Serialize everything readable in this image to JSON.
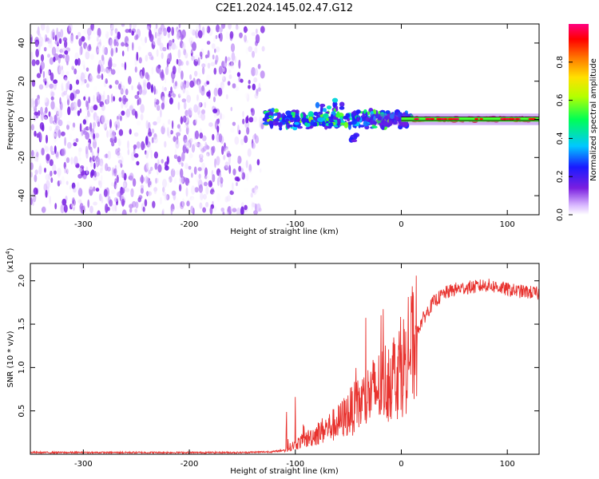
{
  "title": "C2E1.2024.145.02.47.G12",
  "colors": {
    "snr_line": "#e8322e",
    "ref_line": "#000000",
    "axis": "#000000"
  },
  "chart_data": [
    {
      "type": "heatmap",
      "name": "spectrogram",
      "xlabel": "Height of straight line (km)",
      "ylabel": "Frequency (Hz)",
      "xlim": [
        -350,
        130
      ],
      "ylim": [
        -50,
        50
      ],
      "xticks": [
        -300,
        -200,
        -100,
        0,
        100
      ],
      "yticks": [
        -40,
        -20,
        0,
        20,
        40
      ],
      "colorbar": {
        "label": "Normalized spectral amplitude",
        "range": [
          0.0,
          1.0
        ],
        "ticks": [
          0.0,
          0.2,
          0.4,
          0.6,
          0.8
        ],
        "tick_labels": [
          "0.0",
          "0.2",
          "0.4",
          "0.6",
          "0.8"
        ],
        "colormap": "rainbow (white - purple - blue - cyan - green - yellow - red - magenta)"
      },
      "regions": [
        {
          "desc": "broadband noise",
          "x_range": [
            -350,
            -130
          ],
          "freq_range": [
            -50,
            50
          ],
          "amplitude_range": [
            0.0,
            0.15
          ]
        },
        {
          "desc": "signal band",
          "x_range": [
            -130,
            10
          ],
          "freq_center": 0,
          "freq_halfwidth": 5,
          "amplitude_range": [
            0.2,
            0.6
          ]
        },
        {
          "desc": "stable carrier",
          "x_range": [
            10,
            130
          ],
          "freq_center": 0,
          "freq_halfwidth": 1,
          "amplitude_range": [
            0.8,
            1.0
          ]
        }
      ]
    },
    {
      "type": "line",
      "name": "snr",
      "xlabel": "Height of straight line (km)",
      "ylabel": "SNR (10 * v/v)",
      "y_multiplier_label": "(x10",
      "y_multiplier_exp": "4",
      "y_multiplier_close": ")",
      "xlim": [
        -350,
        130
      ],
      "ylim": [
        0,
        2.2
      ],
      "xticks": [
        -300,
        -200,
        -100,
        0,
        100
      ],
      "yticks": [
        0.5,
        1.0,
        1.5,
        2.0
      ],
      "ytick_labels": [
        "0.5",
        "1.0",
        "1.5",
        "2.0"
      ],
      "series": [
        {
          "x": [
            -350,
            -300,
            -200,
            -150,
            -120,
            -110,
            -100,
            -90,
            -80,
            -70,
            -60,
            -50,
            -40,
            -30,
            -20,
            -10,
            0,
            10,
            20,
            30,
            40,
            50,
            60,
            70,
            80,
            90,
            100,
            110,
            120,
            130
          ],
          "y": [
            0.02,
            0.02,
            0.02,
            0.02,
            0.03,
            0.05,
            0.12,
            0.18,
            0.25,
            0.32,
            0.38,
            0.5,
            0.6,
            0.72,
            0.82,
            0.95,
            1.05,
            1.3,
            1.55,
            1.75,
            1.85,
            1.9,
            1.92,
            1.93,
            1.95,
            1.93,
            1.9,
            1.88,
            1.87,
            1.85
          ]
        }
      ]
    }
  ]
}
